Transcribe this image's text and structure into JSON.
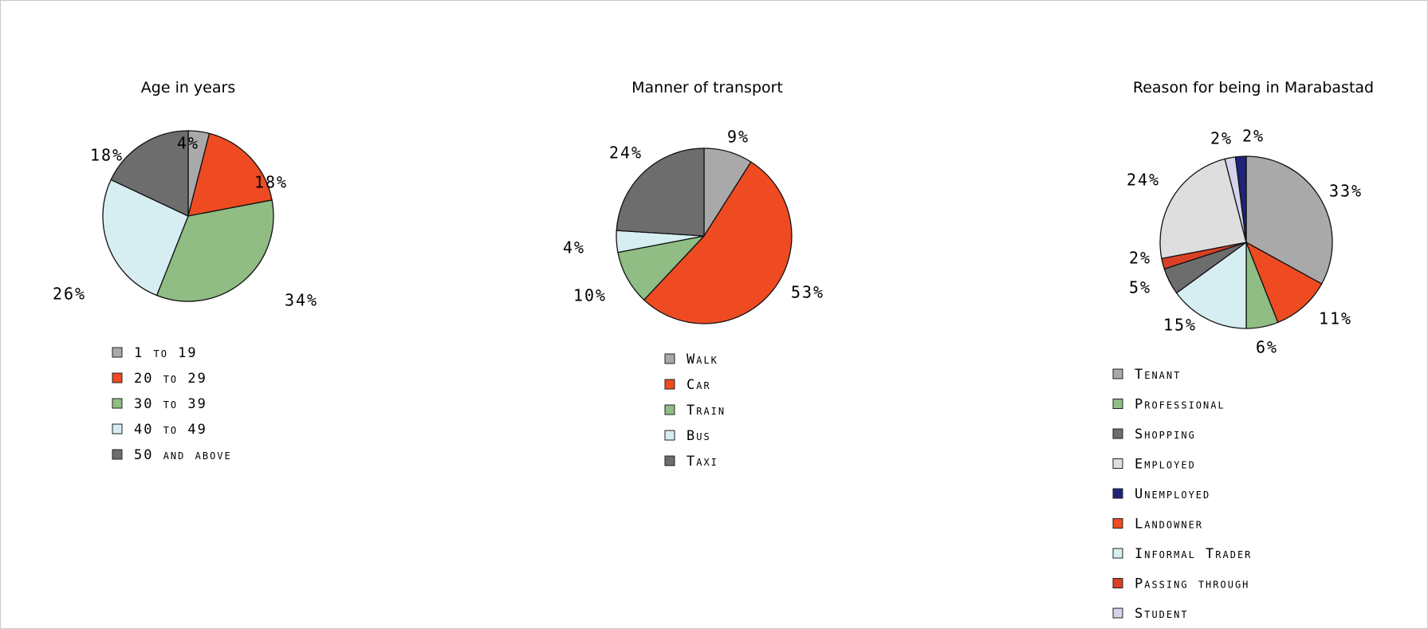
{
  "chart_data": [
    {
      "type": "pie",
      "title": "Age in years",
      "labels": [
        "1 to 19",
        "20 to 29",
        "30 to 39",
        "40 to 49",
        "50 and above"
      ],
      "values": [
        4,
        18,
        34,
        26,
        18
      ],
      "value_labels": [
        "4%",
        "18%",
        "34%",
        "26%",
        "18%"
      ],
      "colors": [
        "#a9a9a9",
        "#ee4b22",
        "#8fbd83",
        "#d6eef2",
        "#6d6d6d"
      ],
      "legend": "bottom"
    },
    {
      "type": "pie",
      "title": "Manner of transport",
      "labels": [
        "Walk",
        "Car",
        "Train",
        "Bus",
        "Taxi"
      ],
      "values": [
        9,
        53,
        10,
        4,
        24
      ],
      "value_labels": [
        "9%",
        "53%",
        "10%",
        "4%",
        "24%"
      ],
      "colors": [
        "#a9a9a9",
        "#ee4b22",
        "#8fbd83",
        "#d6eef2",
        "#6d6d6d"
      ],
      "legend": "bottom"
    },
    {
      "type": "pie",
      "title": "Reason for being in Marabastad",
      "labels": [
        "Tenant",
        "Landowner",
        "Professional",
        "Informal Trader",
        "Shopping",
        "Passing through",
        "Employed",
        "Student",
        "Unemployed"
      ],
      "values": [
        33,
        11,
        6,
        15,
        5,
        2,
        24,
        2,
        2
      ],
      "value_labels": [
        "33%",
        "11%",
        "6%",
        "15%",
        "5%",
        "2%",
        "24%",
        "2%",
        "2%"
      ],
      "colors": [
        "#a9a9a9",
        "#ee4b22",
        "#8fbd83",
        "#d6eef2",
        "#6d6d6d",
        "#d94025",
        "#dedede",
        "#d3d3ec",
        "#1f237a"
      ],
      "legend_order": [
        "Tenant",
        "Professional",
        "Shopping",
        "Employed",
        "Unemployed",
        "Landowner",
        "Informal Trader",
        "Passing through",
        "Student"
      ],
      "legend": "bottom"
    }
  ]
}
